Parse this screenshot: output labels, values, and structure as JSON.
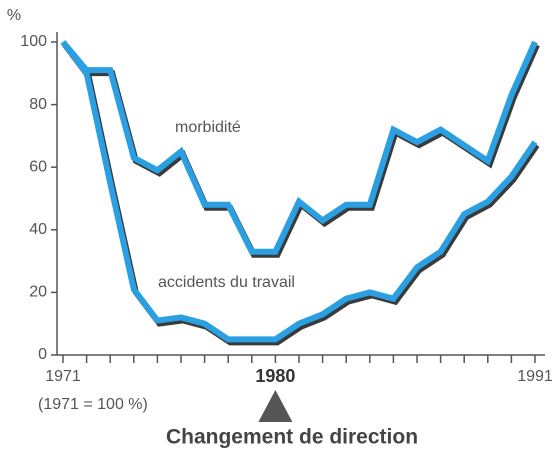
{
  "chart_data": {
    "type": "line",
    "ylabel": "%",
    "note": "(1971 = 100 %)",
    "caption": "Changement de direction",
    "marker_x": 1980,
    "x": [
      1971,
      1972,
      1973,
      1974,
      1975,
      1976,
      1977,
      1978,
      1979,
      1980,
      1981,
      1982,
      1983,
      1984,
      1985,
      1986,
      1987,
      1988,
      1989,
      1990,
      1991
    ],
    "series": [
      {
        "name": "morbidité",
        "color": "#2aa0e2",
        "values": [
          100,
          91,
          91,
          63,
          59,
          65,
          48,
          48,
          33,
          33,
          49,
          43,
          48,
          48,
          72,
          68,
          72,
          67,
          62,
          83,
          100
        ]
      },
      {
        "name": "accidents du travail",
        "color": "#2aa0e2",
        "values": [
          100,
          90,
          55,
          21,
          11,
          12,
          10,
          5,
          5,
          5,
          10,
          13,
          18,
          20,
          18,
          28,
          33,
          45,
          49,
          57,
          68
        ]
      }
    ],
    "xlim": [
      1971,
      1991
    ],
    "xticks": [
      1971,
      1980,
      1991
    ],
    "ylim": [
      0,
      100
    ],
    "yticks": [
      0,
      20,
      40,
      60,
      80,
      100
    ]
  }
}
